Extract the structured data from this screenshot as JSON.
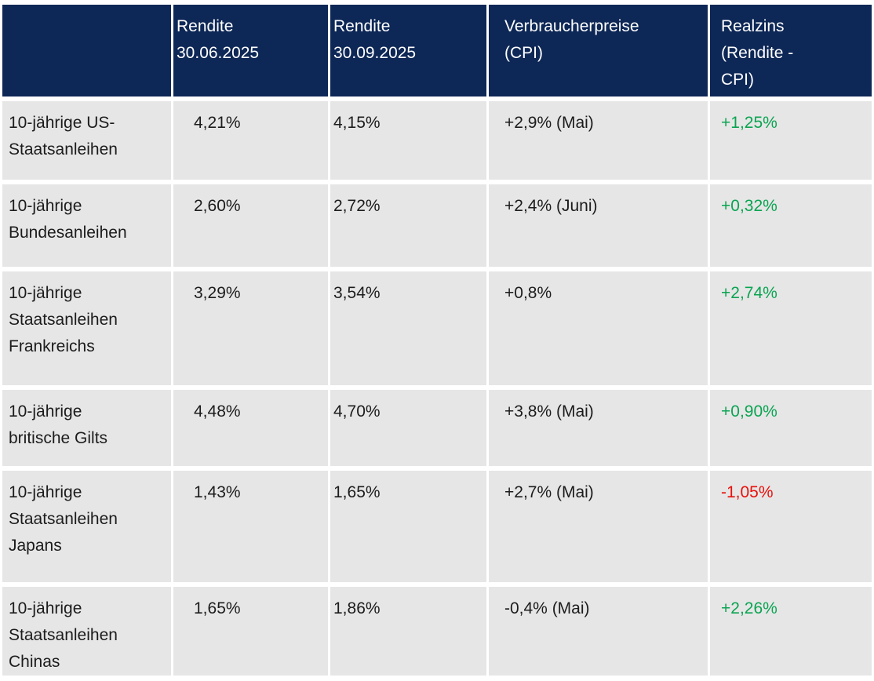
{
  "colors": {
    "header_bg": "#0d2756",
    "row_bg": "#e6e6e6",
    "positive": "#0aa452",
    "negative": "#e8100c",
    "header_text": "#ffffff",
    "body_text": "#1c1c1c"
  },
  "chart_data": {
    "type": "table",
    "columns": [
      "",
      "Rendite\n30.06.2025",
      "Rendite\n30.09.2025",
      "Verbraucherpreise\n(CPI)",
      "Realzins\n(Rendite -\nCPI)"
    ],
    "rows": [
      {
        "label": "10-jährige US-\nStaatsanleihen",
        "rendite_30_06_2025": "4,21%",
        "rendite_30_09_2025": "4,15%",
        "verbraucherpreise_cpi": "+2,9% (Mai)",
        "realzins": "+1,25%",
        "realzins_sentiment": "positive"
      },
      {
        "label": "10-jährige\nBundesanleihen",
        "rendite_30_06_2025": "2,60%",
        "rendite_30_09_2025": "2,72%",
        "verbraucherpreise_cpi": "+2,4% (Juni)",
        "realzins": "+0,32%",
        "realzins_sentiment": "positive"
      },
      {
        "label": "10-jährige\nStaatsanleihen\nFrankreichs",
        "rendite_30_06_2025": "3,29%",
        "rendite_30_09_2025": "3,54%",
        "verbraucherpreise_cpi": "+0,8%",
        "realzins": "+2,74%",
        "realzins_sentiment": "positive"
      },
      {
        "label": "10-jährige\nbritische Gilts",
        "rendite_30_06_2025": "4,48%",
        "rendite_30_09_2025": "4,70%",
        "verbraucherpreise_cpi": "+3,8% (Mai)",
        "realzins": "+0,90%",
        "realzins_sentiment": "positive"
      },
      {
        "label": "10-jährige\nStaatsanleihen\nJapans",
        "rendite_30_06_2025": "1,43%",
        "rendite_30_09_2025": "1,65%",
        "verbraucherpreise_cpi": "+2,7% (Mai)",
        "realzins": "-1,05%",
        "realzins_sentiment": "negative"
      },
      {
        "label": "10-jährige\nStaatsanleihen\nChinas",
        "rendite_30_06_2025": "1,65%",
        "rendite_30_09_2025": "1,86%",
        "verbraucherpreise_cpi": "-0,4% (Mai)",
        "realzins": "+2,26%",
        "realzins_sentiment": "positive"
      }
    ]
  }
}
